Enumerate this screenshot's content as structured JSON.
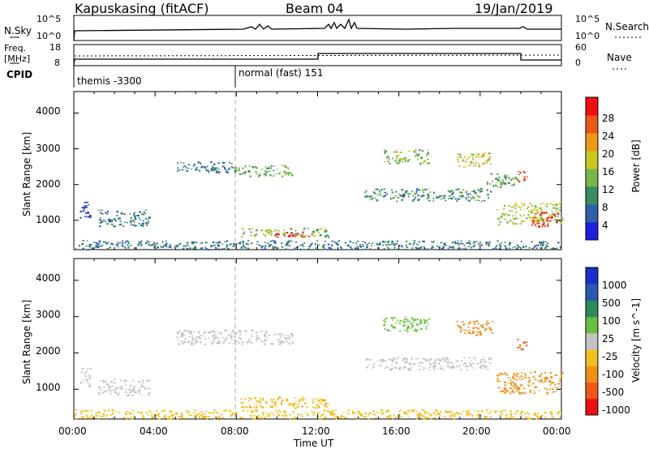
{
  "header": {
    "station": "Kapuskasing (fitACF)",
    "beam": "Beam 04",
    "date": "19/Jan/2019"
  },
  "noise_panel": {
    "left_label": "N.Sky",
    "left_ticks": [
      "10^5",
      "10^0"
    ],
    "right_label": "N.Search",
    "right_ticks": [
      "10^5",
      "10^0"
    ]
  },
  "freq_panel": {
    "left_label_1": "Freq.",
    "left_label_2": "[MHz]",
    "left_ticks": [
      "18",
      "8"
    ],
    "right_label": "Nave",
    "right_ticks": [
      "60",
      "0"
    ]
  },
  "cpid": {
    "label": "CPID",
    "segments": [
      "themis -3300",
      "normal (fast) 151"
    ]
  },
  "colors": {
    "power": [
      "#1f1fe0",
      "#3060a8",
      "#3a8a64",
      "#7ab648",
      "#c8c820",
      "#ee9a18",
      "#ec5818",
      "#ee1010"
    ],
    "velocity": [
      "#1830c8",
      "#2a58b0",
      "#2e8a58",
      "#68c040",
      "#c4c4c4",
      "#f0c020",
      "#f09018",
      "#f05818",
      "#e81010"
    ]
  },
  "chart_data": [
    {
      "type": "heatmap",
      "title": "Power",
      "ylabel": "Slant Range [km]",
      "xlabel": "",
      "yticks": [
        "1000",
        "2000",
        "3000",
        "4000"
      ],
      "ylim": [
        180,
        4600
      ],
      "xlim_hours": [
        0,
        24
      ],
      "colorbar_label": "Power [dB]",
      "colorbar_ticks": [
        "4",
        "8",
        "12",
        "16",
        "20",
        "24",
        "28"
      ],
      "colorbar_range": [
        0,
        32
      ],
      "patches": [
        {
          "t": [
            0.3,
            0.8
          ],
          "r": [
            1050,
            1600
          ],
          "v": 4
        },
        {
          "t": [
            1.2,
            3.7
          ],
          "r": [
            850,
            1300
          ],
          "v": 8
        },
        {
          "t": [
            5.0,
            7.8
          ],
          "r": [
            2350,
            2650
          ],
          "v": 8
        },
        {
          "t": [
            7.8,
            10.8
          ],
          "r": [
            2250,
            2550
          ],
          "v": 12
        },
        {
          "t": [
            8.2,
            12.5
          ],
          "r": [
            550,
            800
          ],
          "v": 14
        },
        {
          "t": [
            9.7,
            11.6
          ],
          "r": [
            550,
            700
          ],
          "v": 28
        },
        {
          "t": [
            14.3,
            20.5
          ],
          "r": [
            1550,
            1900
          ],
          "v": 10
        },
        {
          "t": [
            15.2,
            17.5
          ],
          "r": [
            2600,
            3000
          ],
          "v": 14
        },
        {
          "t": [
            18.8,
            20.6
          ],
          "r": [
            2500,
            2900
          ],
          "v": 18
        },
        {
          "t": [
            20.3,
            21.8
          ],
          "r": [
            1950,
            2350
          ],
          "v": 12
        },
        {
          "t": [
            21.8,
            22.3
          ],
          "r": [
            2100,
            2400
          ],
          "v": 28
        },
        {
          "t": [
            20.8,
            24.0
          ],
          "r": [
            900,
            1500
          ],
          "v": 16
        },
        {
          "t": [
            22.5,
            23.8
          ],
          "r": [
            850,
            1250
          ],
          "v": 28
        },
        {
          "t": [
            0.0,
            24.0
          ],
          "r": [
            200,
            450
          ],
          "v": 8
        }
      ]
    },
    {
      "type": "heatmap",
      "title": "Velocity",
      "ylabel": "Slant Range [km]",
      "xlabel": "Time UT",
      "yticks": [
        "1000",
        "2000",
        "3000",
        "4000"
      ],
      "ylim": [
        180,
        4600
      ],
      "xlim_hours": [
        0,
        24
      ],
      "xticks": [
        "00:00",
        "04:00",
        "08:00",
        "12:00",
        "16:00",
        "20:00",
        "00:00"
      ],
      "colorbar_label": "Velocity [m s^-1]",
      "colorbar_ticks": [
        "1000",
        "500",
        "100",
        "25",
        "-25",
        "-100",
        "-500",
        "-1000"
      ],
      "patches": [
        {
          "t": [
            0.3,
            0.8
          ],
          "r": [
            1050,
            1600
          ],
          "v": 0
        },
        {
          "t": [
            1.2,
            3.7
          ],
          "r": [
            850,
            1300
          ],
          "v": 0
        },
        {
          "t": [
            5.0,
            10.8
          ],
          "r": [
            2250,
            2650
          ],
          "v": 0
        },
        {
          "t": [
            8.2,
            12.5
          ],
          "r": [
            500,
            800
          ],
          "v": -80
        },
        {
          "t": [
            14.3,
            20.5
          ],
          "r": [
            1550,
            1900
          ],
          "v": 0
        },
        {
          "t": [
            15.2,
            17.5
          ],
          "r": [
            2600,
            3000
          ],
          "v": 60
        },
        {
          "t": [
            18.8,
            20.6
          ],
          "r": [
            2500,
            2900
          ],
          "v": -300
        },
        {
          "t": [
            21.8,
            22.3
          ],
          "r": [
            2100,
            2400
          ],
          "v": -700
        },
        {
          "t": [
            20.8,
            24.0
          ],
          "r": [
            900,
            1500
          ],
          "v": -250
        },
        {
          "t": [
            0.0,
            24.0
          ],
          "r": [
            200,
            450
          ],
          "v": -60
        }
      ]
    }
  ]
}
